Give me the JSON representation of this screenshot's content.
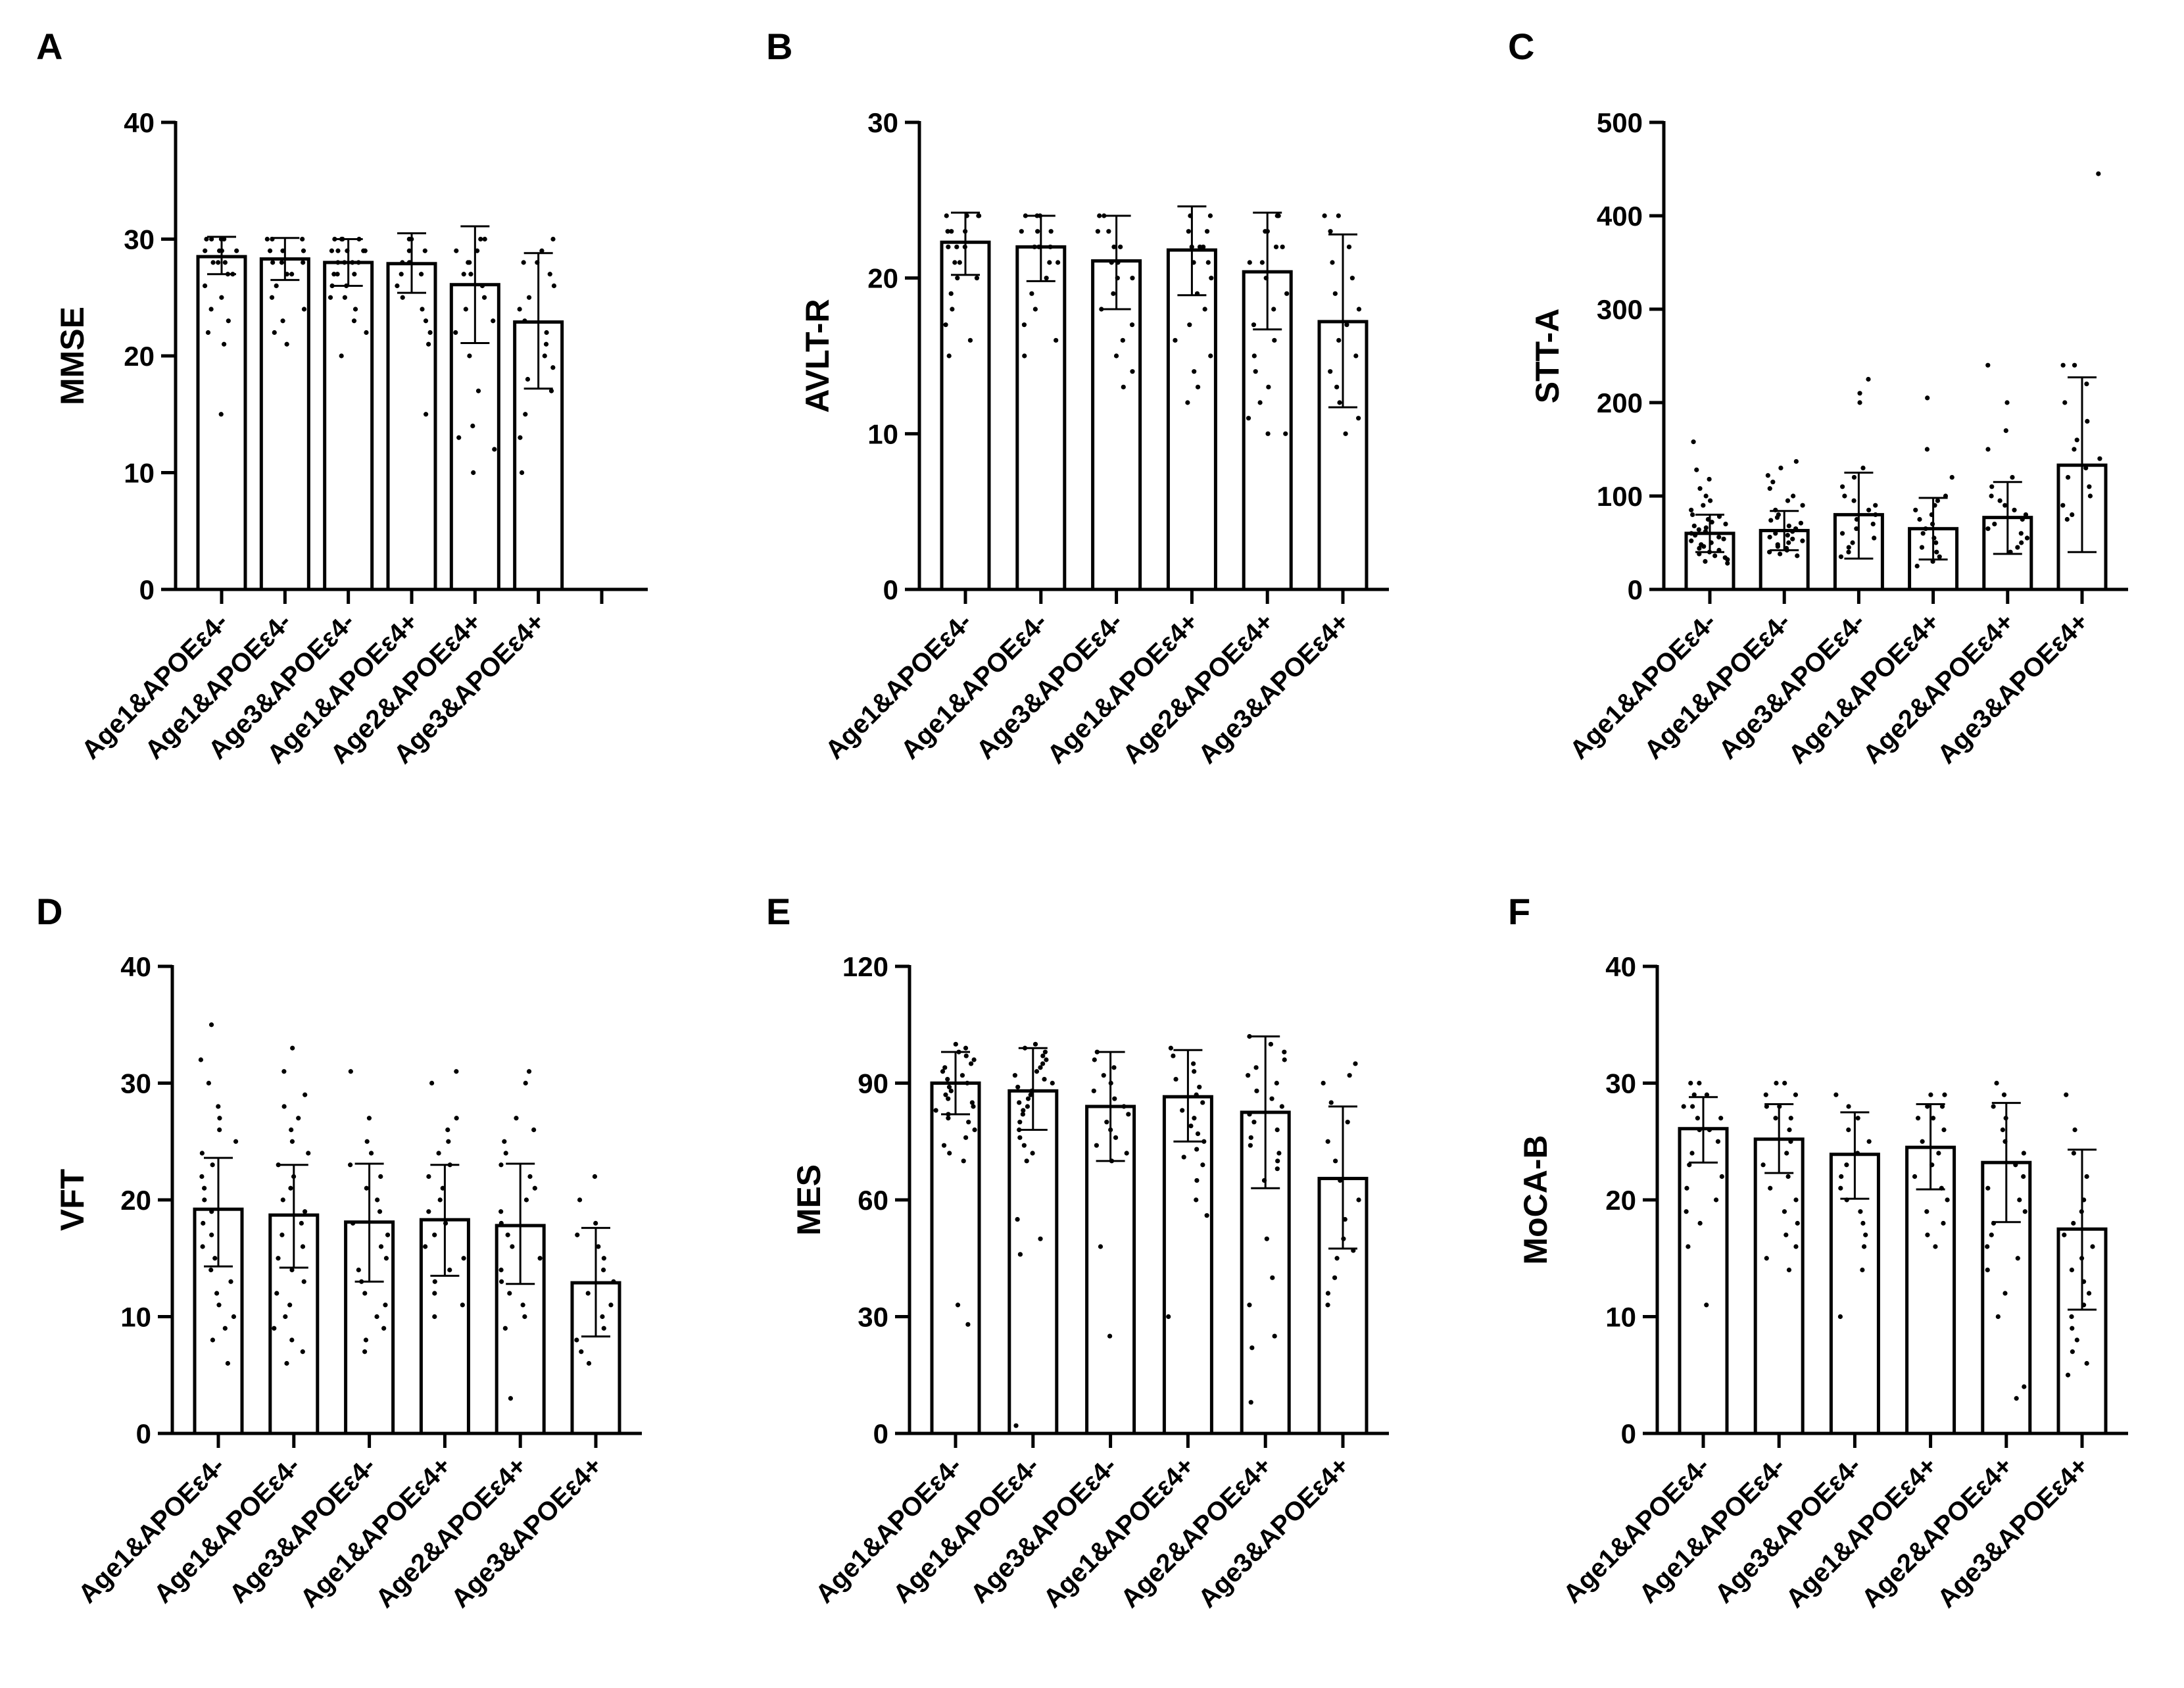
{
  "chart_data": [
    {
      "type": "bar",
      "panel": "A",
      "ylabel": "MMSE",
      "ylim": [
        0,
        40
      ],
      "yticks": [
        0,
        10,
        20,
        30,
        40
      ],
      "empty_slots_after": 1,
      "categories": [
        "Age1&APOEε4-",
        "Age1&APOEε4-",
        "Age3&APOEε4-",
        "Age1&APOEε4+",
        "Age2&APOEε4+",
        "Age3&APOEε4+"
      ],
      "values": [
        28.5,
        28.3,
        28.0,
        27.9,
        26.1,
        22.9
      ],
      "errors": [
        [
          27.0,
          30.2
        ],
        [
          26.5,
          30.1
        ],
        [
          26.0,
          30.0
        ],
        [
          25.4,
          30.5
        ],
        [
          21.1,
          31.1
        ],
        [
          17.2,
          28.8
        ]
      ],
      "points": [
        [
          30,
          30,
          30,
          30,
          29,
          29,
          29,
          29,
          28,
          28,
          28,
          27,
          27,
          26,
          25,
          24,
          23,
          22,
          21,
          15
        ],
        [
          30,
          30,
          30,
          29,
          29,
          29,
          28,
          28,
          28,
          27,
          27,
          26,
          25,
          24,
          23,
          22,
          21
        ],
        [
          30,
          30,
          30,
          30,
          30,
          29,
          29,
          29,
          29,
          29,
          28,
          28,
          28,
          28,
          27,
          27,
          27,
          26,
          26,
          25,
          25,
          24,
          23,
          22,
          20
        ],
        [
          30,
          30,
          29,
          29,
          28,
          28,
          28,
          27,
          27,
          26,
          25,
          24,
          23,
          22,
          21,
          15
        ],
        [
          30,
          30,
          29,
          29,
          28,
          28,
          27,
          27,
          26,
          25,
          24,
          23,
          22,
          20,
          17,
          14,
          13,
          12,
          10
        ],
        [
          30,
          29,
          28,
          28,
          27,
          26,
          25,
          24,
          23,
          22,
          21,
          20,
          19,
          18,
          17,
          15,
          13,
          10
        ]
      ]
    },
    {
      "type": "bar",
      "panel": "B",
      "ylabel": "AVLT-R",
      "ylim": [
        0,
        30
      ],
      "yticks": [
        0,
        10,
        20,
        30
      ],
      "categories": [
        "Age1&APOEε4-",
        "Age1&APOEε4-",
        "Age3&APOEε4-",
        "Age1&APOEε4+",
        "Age2&APOEε4+",
        "Age3&APOEε4+"
      ],
      "values": [
        22.3,
        22.0,
        21.1,
        21.8,
        20.4,
        17.2
      ],
      "errors": [
        [
          20.2,
          24.2
        ],
        [
          19.8,
          24.0
        ],
        [
          18.0,
          24.0
        ],
        [
          18.9,
          24.6
        ],
        [
          16.7,
          24.2
        ],
        [
          11.7,
          22.8
        ]
      ],
      "points": [
        [
          24,
          24,
          24,
          24,
          23,
          23,
          23,
          22,
          22,
          22,
          21,
          21,
          20,
          20,
          19,
          18,
          17,
          16,
          15
        ],
        [
          24,
          24,
          24,
          23,
          23,
          23,
          22,
          22,
          22,
          21,
          21,
          20,
          19,
          18,
          17,
          16,
          15
        ],
        [
          24,
          24,
          23,
          23,
          22,
          22,
          21,
          21,
          20,
          20,
          19,
          18,
          17,
          16,
          15,
          14,
          13
        ],
        [
          24,
          24,
          23,
          23,
          22,
          22,
          22,
          21,
          21,
          20,
          19,
          18,
          17,
          16,
          15,
          14,
          13,
          12
        ],
        [
          24,
          24,
          23,
          23,
          22,
          22,
          21,
          21,
          20,
          19,
          18,
          17,
          16,
          15,
          14,
          13,
          12,
          11,
          10,
          10
        ],
        [
          24,
          24,
          23,
          22,
          21,
          20,
          19,
          18,
          17,
          16,
          15,
          14,
          13,
          12,
          11,
          10
        ]
      ]
    },
    {
      "type": "bar",
      "panel": "C",
      "ylabel": "STT-A",
      "ylim": [
        0,
        500
      ],
      "yticks": [
        0,
        100,
        200,
        300,
        400,
        500
      ],
      "categories": [
        "Age1&APOEε4-",
        "Age1&APOEε4-",
        "Age3&APOEε4-",
        "Age1&APOEε4+",
        "Age2&APOEε4+",
        "Age3&APOEε4+"
      ],
      "values": [
        60,
        63,
        80,
        65,
        77,
        133
      ],
      "errors": [
        [
          40,
          80
        ],
        [
          42,
          84
        ],
        [
          33,
          125
        ],
        [
          32,
          98
        ],
        [
          38,
          115
        ],
        [
          40,
          227
        ]
      ],
      "points": [
        [
          158,
          128,
          118,
          108,
          100,
          95,
          90,
          85,
          80,
          78,
          75,
          72,
          70,
          68,
          66,
          64,
          62,
          60,
          58,
          56,
          54,
          52,
          50,
          48,
          46,
          44,
          42,
          40,
          38,
          36,
          34,
          32,
          30,
          28
        ],
        [
          137,
          130,
          122,
          115,
          108,
          100,
          95,
          90,
          85,
          80,
          77,
          74,
          71,
          68,
          65,
          62,
          60,
          58,
          56,
          54,
          52,
          50,
          48,
          46,
          44,
          42,
          40,
          38,
          36
        ],
        [
          225,
          210,
          200,
          130,
          120,
          110,
          100,
          95,
          90,
          85,
          80,
          75,
          70,
          65,
          60,
          55,
          50,
          45,
          40,
          35
        ],
        [
          205,
          150,
          120,
          100,
          95,
          90,
          85,
          80,
          75,
          70,
          65,
          60,
          55,
          50,
          45,
          40,
          35,
          30,
          25
        ],
        [
          240,
          200,
          170,
          150,
          120,
          110,
          100,
          95,
          90,
          85,
          80,
          75,
          70,
          65,
          60,
          55,
          50,
          45,
          40
        ],
        [
          445,
          240,
          240,
          220,
          200,
          180,
          160,
          150,
          140,
          130,
          120,
          110,
          100,
          90,
          80,
          75
        ]
      ]
    },
    {
      "type": "bar",
      "panel": "D",
      "ylabel": "VFT",
      "ylim": [
        0,
        40
      ],
      "yticks": [
        0,
        10,
        20,
        30,
        40
      ],
      "categories": [
        "Age1&APOEε4-",
        "Age1&APOEε4-",
        "Age3&APOEε4-",
        "Age1&APOEε4+",
        "Age2&APOEε4+",
        "Age3&APOEε4+"
      ],
      "values": [
        19.2,
        18.7,
        18.1,
        18.3,
        17.8,
        12.9
      ],
      "errors": [
        [
          14.3,
          23.6
        ],
        [
          14.2,
          23.0
        ],
        [
          13.0,
          23.1
        ],
        [
          13.5,
          23.0
        ],
        [
          12.8,
          23.1
        ],
        [
          8.3,
          17.6
        ]
      ],
      "points": [
        [
          35,
          32,
          30,
          28,
          27,
          26,
          25,
          24,
          23,
          22,
          21,
          20,
          19,
          18,
          17,
          16,
          15,
          14,
          13,
          12,
          11,
          10,
          9,
          8,
          6
        ],
        [
          33,
          31,
          29,
          28,
          27,
          26,
          25,
          24,
          23,
          22,
          21,
          20,
          19,
          18,
          17,
          16,
          15,
          14,
          13,
          12,
          11,
          10,
          9,
          8,
          7,
          6
        ],
        [
          31,
          27,
          25,
          24,
          23,
          22,
          21,
          20,
          19,
          18,
          17,
          16,
          15,
          14,
          13,
          12,
          11,
          10,
          9,
          8,
          7
        ],
        [
          31,
          30,
          27,
          26,
          25,
          24,
          23,
          22,
          21,
          20,
          19,
          18,
          17,
          16,
          15,
          14,
          13,
          12,
          11,
          10
        ],
        [
          31,
          30,
          27,
          26,
          25,
          24,
          23,
          22,
          21,
          20,
          19,
          18,
          17,
          16,
          15,
          14,
          13,
          12,
          11,
          10,
          9,
          3
        ],
        [
          22,
          20,
          18,
          17,
          16,
          15,
          14,
          13,
          12,
          11,
          10,
          9,
          8,
          7,
          6
        ]
      ]
    },
    {
      "type": "bar",
      "panel": "E",
      "ylabel": "MES",
      "ylim": [
        0,
        120
      ],
      "yticks": [
        0,
        30,
        60,
        90,
        120
      ],
      "categories": [
        "Age1&APOEε4-",
        "Age1&APOEε4-",
        "Age3&APOEε4-",
        "Age1&APOEε4+",
        "Age2&APOEε4+",
        "Age3&APOEε4+"
      ],
      "values": [
        90,
        88,
        84,
        86.5,
        82.5,
        65.5
      ],
      "errors": [
        [
          82,
          98
        ],
        [
          78,
          99
        ],
        [
          70,
          98
        ],
        [
          75,
          98.5
        ],
        [
          63,
          102
        ],
        [
          47.5,
          84
        ]
      ],
      "points": [
        [
          100,
          99,
          98,
          97,
          96,
          95,
          94,
          93,
          92,
          91,
          90,
          89,
          88,
          87,
          86,
          85,
          84,
          83,
          82,
          81,
          80,
          78,
          76,
          74,
          72,
          70,
          33,
          28
        ],
        [
          100,
          99,
          98,
          97,
          96,
          95,
          94,
          93,
          92,
          91,
          90,
          89,
          88,
          87,
          86,
          85,
          84,
          83,
          82,
          80,
          78,
          76,
          74,
          72,
          70,
          55,
          50,
          46,
          2
        ],
        [
          98,
          96,
          94,
          92,
          90,
          88,
          86,
          84,
          82,
          80,
          78,
          76,
          74,
          72,
          70,
          48,
          25
        ],
        [
          99,
          97,
          95,
          93,
          91,
          89,
          87,
          85,
          83,
          81,
          79,
          77,
          75,
          73,
          71,
          69,
          65,
          60,
          56,
          30
        ],
        [
          102,
          100,
          98,
          96,
          94,
          92,
          90,
          88,
          86,
          84,
          82,
          80,
          78,
          76,
          74,
          72,
          70,
          68,
          65,
          50,
          40,
          33,
          25,
          22,
          8
        ],
        [
          95,
          92,
          90,
          85,
          80,
          75,
          70,
          65,
          60,
          55,
          50,
          47,
          45,
          40,
          36,
          33
        ]
      ]
    },
    {
      "type": "bar",
      "panel": "F",
      "ylabel": "MoCA-B",
      "ylim": [
        0,
        40
      ],
      "yticks": [
        0,
        10,
        20,
        30,
        40
      ],
      "categories": [
        "Age1&APOEε4-",
        "Age1&APOEε4-",
        "Age3&APOEε4-",
        "Age1&APOEε4+",
        "Age2&APOEε4+",
        "Age3&APOEε4+"
      ],
      "values": [
        26.1,
        25.2,
        23.9,
        24.5,
        23.2,
        17.5
      ],
      "errors": [
        [
          23.2,
          28.8
        ],
        [
          22.3,
          28.2
        ],
        [
          20.1,
          27.5
        ],
        [
          20.9,
          28.2
        ],
        [
          18.1,
          28.3
        ],
        [
          10.6,
          24.3
        ]
      ],
      "points": [
        [
          30,
          30,
          29,
          29,
          28,
          28,
          27,
          27,
          26,
          26,
          25,
          24,
          23,
          22,
          21,
          20,
          19,
          18,
          16,
          11
        ],
        [
          30,
          30,
          29,
          29,
          28,
          28,
          27,
          27,
          26,
          25,
          24,
          23,
          22,
          21,
          20,
          19,
          18,
          17,
          16,
          15,
          14
        ],
        [
          29,
          28,
          27,
          26,
          25,
          24,
          23,
          22,
          21,
          20,
          19,
          18,
          17,
          16,
          14,
          10
        ],
        [
          29,
          29,
          28,
          28,
          27,
          27,
          26,
          25,
          24,
          23,
          22,
          21,
          20,
          19,
          18,
          17,
          16
        ],
        [
          30,
          29,
          28,
          27,
          26,
          25,
          24,
          23,
          22,
          21,
          20,
          19,
          18,
          17,
          16,
          15,
          14,
          12,
          10,
          4,
          3
        ],
        [
          29,
          26,
          24,
          22,
          20,
          19,
          18,
          17,
          16,
          15,
          14,
          13,
          12,
          11,
          10,
          9,
          8,
          7,
          6,
          5
        ]
      ]
    }
  ]
}
